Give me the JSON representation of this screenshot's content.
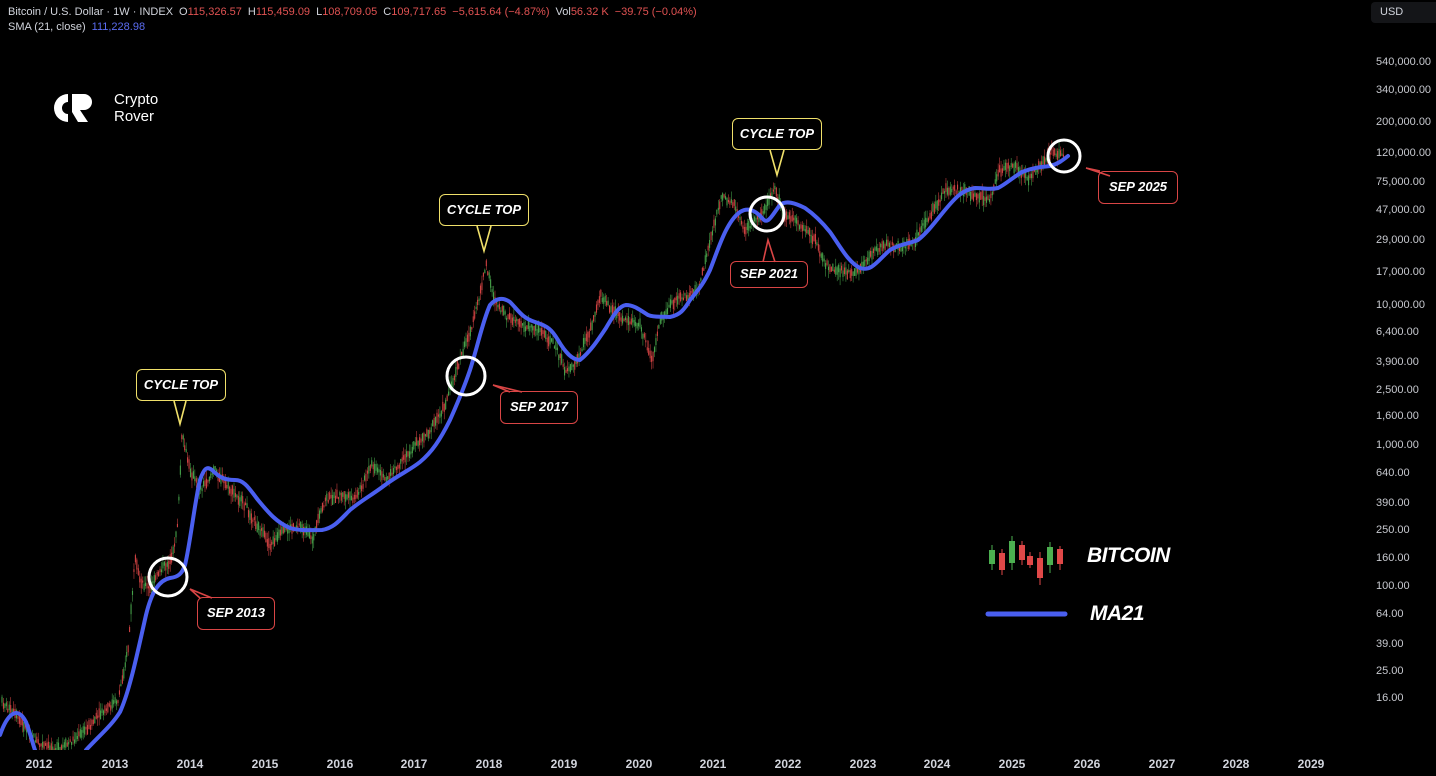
{
  "header": {
    "symbol": "Bitcoin / U.S. Dollar · 1W · INDEX",
    "open_label": "O",
    "open": "115,326.57",
    "high_label": "H",
    "high": "115,459.09",
    "low_label": "L",
    "low": "108,709.05",
    "close_label": "C",
    "close": "109,717.65",
    "change": "−5,615.64 (−4.87%)",
    "vol_label": "Vol",
    "vol": "56.32 K",
    "vol_change": "−39.75 (−0.04%)",
    "sma_label": "SMA (21, close)",
    "sma_value": "111,228.98"
  },
  "currency": "USD",
  "logo": {
    "line1": "Crypto",
    "line2": "Rover"
  },
  "annotations": {
    "cycle_top_1": "CYCLE TOP",
    "cycle_top_2": "CYCLE TOP",
    "cycle_top_3": "CYCLE TOP",
    "sep_2013": "SEP 2013",
    "sep_2017": "SEP 2017",
    "sep_2021": "SEP 2021",
    "sep_2025": "SEP 2025"
  },
  "legend": {
    "bitcoin": "BITCOIN",
    "ma21": "MA21"
  },
  "colors": {
    "background": "#000000",
    "up_candle": "#4caf50",
    "down_candle": "#e04848",
    "ma_line": "#4a5ff0",
    "cycle_top_border": "#f0e06a",
    "sep_border": "#d94545",
    "circle": "#ffffff"
  },
  "chart_data": {
    "type": "line",
    "title": "Bitcoin / U.S. Dollar · 1W · INDEX with SMA(21)",
    "xlabel": "",
    "ylabel": "USD (log scale)",
    "y_scale": "log",
    "y_ticks": [
      "540,000.00",
      "340,000.00",
      "200,000.00",
      "120,000.00",
      "75,000.00",
      "47,000.00",
      "29,000.00",
      "17,000.00",
      "10,000.00",
      "6,400.00",
      "3,900.00",
      "2,500.00",
      "1,600.00",
      "1,000.00",
      "640.00",
      "390.00",
      "250.00",
      "160.00",
      "100.00",
      "64.00",
      "39.00",
      "25.00",
      "16.00"
    ],
    "x_ticks": [
      "2012",
      "2013",
      "2014",
      "2015",
      "2016",
      "2017",
      "2018",
      "2019",
      "2020",
      "2021",
      "2022",
      "2023",
      "2024",
      "2025",
      "2026",
      "2027",
      "2028",
      "2029"
    ],
    "ylim": [
      10,
      700000
    ],
    "grid": false,
    "legend_position": "lower right",
    "series": [
      {
        "name": "BITCOIN (approx. weekly price)",
        "x": [
          "2013-04",
          "2013-09",
          "2013-12",
          "2014-06",
          "2015-01",
          "2015-08",
          "2016-06",
          "2017-01",
          "2017-09",
          "2017-12",
          "2018-06",
          "2018-12",
          "2019-06",
          "2020-03",
          "2020-12",
          "2021-04",
          "2021-07",
          "2021-11",
          "2022-06",
          "2022-12",
          "2023-10",
          "2024-03",
          "2024-09",
          "2024-12",
          "2025-04",
          "2025-09"
        ],
        "values": [
          230,
          130,
          1100,
          600,
          250,
          230,
          650,
          950,
          4000,
          19000,
          6500,
          3300,
          12000,
          5000,
          28000,
          63000,
          30000,
          68000,
          19000,
          16500,
          27000,
          72000,
          55000,
          105000,
          78000,
          112000
        ]
      },
      {
        "name": "MA21",
        "x": [
          "2013-04",
          "2013-09",
          "2013-12",
          "2014-06",
          "2015-01",
          "2015-08",
          "2016-06",
          "2017-01",
          "2017-09",
          "2017-12",
          "2018-06",
          "2018-12",
          "2019-06",
          "2020-03",
          "2020-12",
          "2021-04",
          "2021-07",
          "2021-11",
          "2022-06",
          "2022-12",
          "2023-10",
          "2024-03",
          "2024-09",
          "2024-12",
          "2025-04",
          "2025-09"
        ],
        "values": [
          60,
          120,
          350,
          580,
          280,
          230,
          420,
          800,
          3000,
          8000,
          10500,
          4500,
          8500,
          8500,
          15000,
          40000,
          50000,
          53000,
          30000,
          18500,
          27000,
          45000,
          60000,
          70000,
          90000,
          111229
        ]
      }
    ],
    "annotations": [
      {
        "text": "CYCLE TOP",
        "x": "2013-12",
        "type": "peak"
      },
      {
        "text": "CYCLE TOP",
        "x": "2017-12",
        "type": "peak"
      },
      {
        "text": "CYCLE TOP",
        "x": "2021-11",
        "type": "peak"
      },
      {
        "text": "SEP 2013",
        "x": "2013-09",
        "type": "circle"
      },
      {
        "text": "SEP 2017",
        "x": "2017-09",
        "type": "circle"
      },
      {
        "text": "SEP 2021",
        "x": "2021-09",
        "type": "circle"
      },
      {
        "text": "SEP 2025",
        "x": "2025-09",
        "type": "circle"
      }
    ]
  }
}
